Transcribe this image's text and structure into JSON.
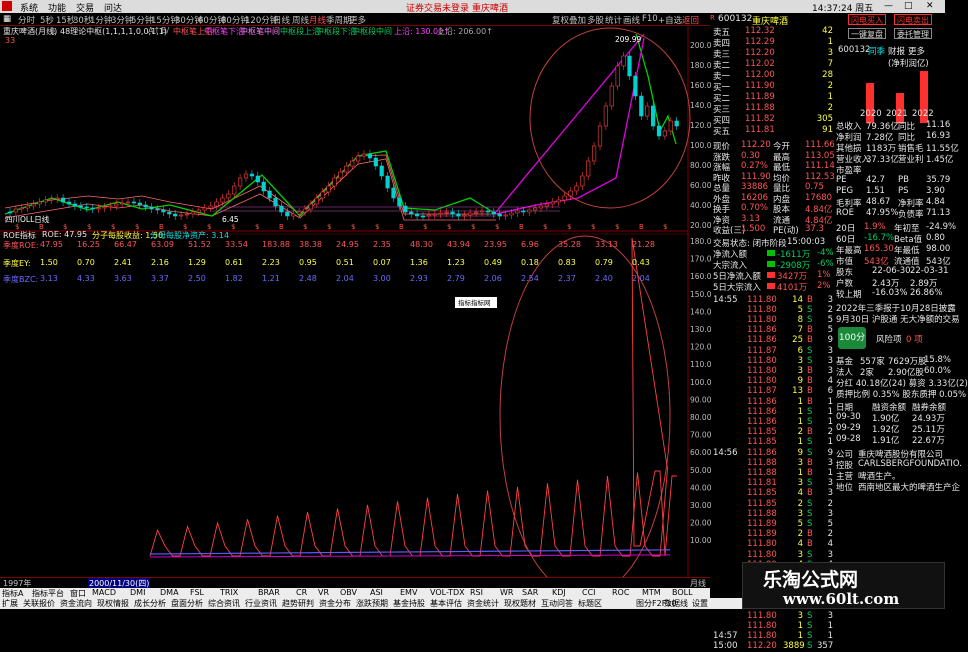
{
  "menubar": {
    "items": [
      "系统",
      "功能",
      "交易",
      "问达"
    ],
    "center_links": [
      "证券交易未登录",
      "重庆啤酒"
    ],
    "clock": "14:37:24 周五",
    "win_buttons": [
      "—",
      "□",
      "✕"
    ]
  },
  "periods": [
    "分时",
    "5秒",
    "15秒",
    "30秒",
    "1分钟",
    "3分钟",
    "5分钟",
    "15分钟",
    "30分钟",
    "60分钟",
    "80分钟",
    "120分钟",
    "日线",
    "周线",
    "月线",
    "季周期",
    "更多"
  ],
  "toolbar_right": [
    "复权",
    "叠加",
    "多股",
    "统计",
    "画线",
    "F10",
    "+自选",
    "返回"
  ],
  "chart": {
    "name": "重庆啤酒(月线)",
    "indicator": "48理论中枢(1,1,1,1,0,0,1,1)",
    "price_scale": "33",
    "labels": [
      "中枢笔上沿",
      "中枢笔下沿",
      "中枢笔中间",
      "中枢段上沿",
      "中枢段下沿",
      "中枢段中间"
    ],
    "upper_info": "上沿: 130.00↑",
    "upper_info2": "上沿: 206.00↑",
    "peak_label": "209.99",
    "low_label": "6.45",
    "left_label": "四川OLL日线",
    "y_axis": [
      "200.0",
      "180.0",
      "160.0",
      "140.0",
      "120.0",
      "100.0",
      "80.00",
      "60.00",
      "40.00",
      "20.00"
    ]
  },
  "lower": {
    "title": "ROE指标",
    "roe_label": "ROE: 47.95",
    "extra1": "分子每股收益: 1.50",
    "extra2": "分母每股净资产: 3.14",
    "row1_label": "季度ROE:",
    "row1": [
      "47.95",
      "16.25",
      "66.47",
      "63.09",
      "51.52",
      "33.54",
      "183.88",
      "38.38",
      "24.95",
      "2.35",
      "48.30",
      "43.94",
      "23.95",
      "6.96",
      "35.28",
      "33.13",
      "21.28"
    ],
    "row2_label": "季度EY:",
    "row2": [
      "1.50",
      "0.70",
      "2.41",
      "2.16",
      "1.29",
      "0.61",
      "2.23",
      "0.95",
      "0.51",
      "0.07",
      "1.36",
      "1.23",
      "0.49",
      "0.18",
      "0.83",
      "0.79",
      "0.43"
    ],
    "row3_label": "季度BZC:",
    "row3": [
      "3.13",
      "4.33",
      "3.63",
      "3.37",
      "2.50",
      "1.82",
      "1.21",
      "2.48",
      "2.04",
      "3.00",
      "2.93",
      "2.79",
      "2.06",
      "2.54",
      "2.37",
      "2.40",
      "2.04"
    ],
    "popup": "指标指标网",
    "y_axis": [
      "180.0",
      "170.0",
      "160.0",
      "150.0",
      "140.0",
      "130.0",
      "120.0",
      "110.0",
      "100.0",
      "90.00",
      "80.00",
      "70.00",
      "60.00",
      "50.00",
      "40.00",
      "30.00",
      "20.00",
      "10.00"
    ]
  },
  "bottom_axis": {
    "start": "1997年",
    "highlight": "2000/11/30(四)",
    "right": "月线"
  },
  "indicator_tabs": [
    "指标A",
    "指标平台",
    "窗口",
    "MACD",
    "DMI",
    "DMA",
    "FSL",
    "TRIX",
    "BRAR",
    "CR",
    "VR",
    "OBV",
    "ASI",
    "EMV",
    "VOL-TDX",
    "RSI",
    "WR",
    "SAR",
    "KDJ",
    "CCI",
    "ROC",
    "MTM",
    "BOLL",
    "PSY",
    "更多",
    "设置"
  ],
  "status_tabs": [
    "扩展",
    "关联报价",
    "资金流向",
    "现权情报",
    "成长分析",
    "盘面分析",
    "综合资讯",
    "行业资讯",
    "趋势研判",
    "资金分布",
    "涨跌预期",
    "基金持股",
    "基本评估",
    "资金统计",
    "现权题材",
    "互动问答",
    "标题区"
  ],
  "status_right": [
    "图分F2F10",
    "数据线",
    "设置"
  ],
  "quote": {
    "code": "600132",
    "name": "重庆啤酒",
    "orders": [
      {
        "label": "卖五",
        "price": "112.32",
        "vol": "42"
      },
      {
        "label": "卖四",
        "price": "112.29",
        "vol": "1"
      },
      {
        "label": "卖三",
        "price": "112.20",
        "vol": "3"
      },
      {
        "label": "卖二",
        "price": "112.02",
        "vol": "7"
      },
      {
        "label": "卖一",
        "price": "112.00",
        "vol": "28"
      },
      {
        "label": "买一",
        "price": "111.90",
        "vol": "2"
      },
      {
        "label": "买二",
        "price": "111.89",
        "vol": "1"
      },
      {
        "label": "买三",
        "price": "111.88",
        "vol": "2"
      },
      {
        "label": "买四",
        "price": "111.82",
        "vol": "305"
      },
      {
        "label": "买五",
        "price": "111.81",
        "vol": "91"
      }
    ],
    "stats": [
      [
        "现价",
        "112.20",
        "今开",
        "111.66"
      ],
      [
        "涨跌",
        "0.30",
        "最高",
        "113.05"
      ],
      [
        "涨幅",
        "0.27%",
        "最低",
        "111.14"
      ],
      [
        "昨收",
        "111.90",
        "均价",
        "112.53"
      ],
      [
        "总量",
        "33886",
        "量比",
        "0.75"
      ],
      [
        "外盘",
        "16206",
        "内盘",
        "17680"
      ],
      [
        "换手",
        "0.70%",
        "股本",
        "4.84亿"
      ],
      [
        "净资",
        "3.13",
        "流通",
        "4.84亿"
      ],
      [
        "收益(三)",
        "1.500",
        "PE(动)",
        "37.3"
      ]
    ],
    "trade_state": "交易状态: 闭市阶段",
    "trade_time": "15:00:03",
    "flows": [
      [
        "净流入额",
        "-1611万",
        "-4%"
      ],
      [
        "大宗流入",
        "-2908万",
        "-6%"
      ],
      [
        "5日净流入额",
        "3427万",
        "1%"
      ],
      [
        "5日大宗流入",
        "4101万",
        "2%"
      ]
    ],
    "ticks": [
      [
        "14:55",
        "111.80",
        "14",
        "B",
        "3"
      ],
      [
        "",
        "111.80",
        "5",
        "S",
        "2"
      ],
      [
        "",
        "111.80",
        "8",
        "S",
        "5"
      ],
      [
        "",
        "111.86",
        "7",
        "B",
        "5"
      ],
      [
        "",
        "111.86",
        "25",
        "B",
        "9"
      ],
      [
        "",
        "111.87",
        "6",
        "S",
        "3"
      ],
      [
        "",
        "111.80",
        "3",
        "S",
        "3"
      ],
      [
        "",
        "111.80",
        "3",
        "B",
        "3"
      ],
      [
        "",
        "111.80",
        "9",
        "B",
        "4"
      ],
      [
        "",
        "111.87",
        "13",
        "B",
        "6"
      ],
      [
        "",
        "111.86",
        "1",
        "B",
        "1"
      ],
      [
        "",
        "111.86",
        "1",
        "S",
        "1"
      ],
      [
        "",
        "111.86",
        "1",
        "S",
        "1"
      ],
      [
        "",
        "111.85",
        "2",
        "B",
        "2"
      ],
      [
        "",
        "111.85",
        "1",
        "S",
        "1"
      ],
      [
        "14:56",
        "111.86",
        "9",
        "S",
        "9"
      ],
      [
        "",
        "111.88",
        "3",
        "B",
        "3"
      ],
      [
        "",
        "111.88",
        "1",
        "B",
        "1"
      ],
      [
        "",
        "111.81",
        "3",
        "S",
        "3"
      ],
      [
        "",
        "111.85",
        "4",
        "B",
        "3"
      ],
      [
        "",
        "111.85",
        "2",
        "S",
        "2"
      ],
      [
        "",
        "111.88",
        "3",
        "S",
        "3"
      ],
      [
        "",
        "111.89",
        "5",
        "S",
        "5"
      ],
      [
        "",
        "111.89",
        "2",
        "B",
        "2"
      ],
      [
        "",
        "111.80",
        "4",
        "B",
        "4"
      ],
      [
        "",
        "111.80",
        "3",
        "S",
        "3"
      ],
      [
        "",
        "111.80",
        "4",
        "S",
        "4"
      ],
      [
        "",
        "111.80",
        "1",
        "S",
        "1"
      ],
      [
        "",
        "111.80",
        "1",
        "S",
        "1"
      ],
      [
        "",
        "111.80",
        "3",
        "S",
        "3"
      ],
      [
        "",
        "111.80",
        "1",
        "S",
        "1"
      ],
      [
        "",
        "111.80",
        "3",
        "S",
        "3"
      ],
      [
        "",
        "111.80",
        "1",
        "S",
        "1"
      ],
      [
        "14:57",
        "111.80",
        "1",
        "S",
        "1"
      ],
      [
        "15:00",
        "112.20",
        "3889",
        "S",
        "357"
      ]
    ]
  },
  "finance": {
    "code_tag": "A",
    "code": "600132",
    "name": "重庆啤酒",
    "btn_flash_buy": "闪电买入",
    "btn_flash_sell": "闪电卖出",
    "btn_buy": "一键复盘",
    "btn_sell": "委托管理",
    "tabs": [
      "同季",
      "财报",
      "更多"
    ],
    "tab_label": "(净利润亿)",
    "year_labels": [
      "2020",
      "2021",
      "2022"
    ],
    "rows": [
      [
        "总收入",
        "79.36亿",
        "同比",
        "11.16"
      ],
      [
        "净利润",
        "7.28亿",
        "同比",
        "16.93"
      ],
      [
        "其他损",
        "1183万",
        "销售毛",
        "11.55亿"
      ],
      [
        "营业收入",
        "37.33亿",
        "营业利",
        "1.45亿"
      ],
      [
        "市盈率",
        "",
        "",
        ""
      ],
      [
        "PE",
        "42.7",
        "PB",
        "35.79"
      ],
      [
        "PEG",
        "1.51",
        "PS",
        "3.90"
      ],
      [
        "毛利率",
        "48.67",
        "净利率",
        "4.84"
      ],
      [
        "ROE",
        "47.95%",
        "负债率",
        "71.13"
      ]
    ],
    "rows2": [
      [
        "20日",
        "1.9%",
        "年初至",
        "-24.9%"
      ],
      [
        "60日",
        "-16.7%",
        "Beta值",
        "0.80"
      ],
      [
        "年最高",
        "165.30",
        "年最低",
        "98.00"
      ],
      [
        "市值",
        "543亿",
        "流通值",
        "543亿"
      ]
    ],
    "report": [
      "股东",
      "22-06-30",
      "22-03-31"
    ],
    "report_rows": [
      [
        "户数",
        "2.43万",
        "2.89万"
      ],
      [
        "较上期",
        "-16.03%",
        "26.86%"
      ]
    ],
    "notice1": "2022年三季报于10月28日披露",
    "notice2": "9月30日 沪股通 无大净额的交易",
    "score": "100分",
    "risk": "风险项",
    "risk_count": "0 项",
    "holders": [
      [
        "基金",
        "557家",
        "7629万股",
        "15.8%"
      ],
      [
        "法人",
        "2家",
        "2.90亿股",
        "60.0%"
      ]
    ],
    "rights": "分红 40.18亿(24) 募资 3.33亿(2)",
    "pledge": "质押比例 0.35% 股东质押 0.05%",
    "margin_head": [
      "日期",
      "融资余额",
      "融券余额"
    ],
    "margin": [
      [
        "09-30",
        "1.90亿",
        "24.93万"
      ],
      [
        "09-29",
        "1.92亿",
        "25.11万"
      ],
      [
        "09-28",
        "1.91亿",
        "22.67万"
      ]
    ],
    "company_head": "公司",
    "company": "重庆啤酒股份有限公司",
    "holder_label": "控股",
    "holder": "CARLSBERGFOUNDATIO.",
    "business_label": "主营",
    "business": "啤酒生产。",
    "region_label": "地位",
    "region": "西南地区最大的啤酒生产企"
  },
  "watermark": {
    "line1": "乐淘公式网",
    "line2": "www.60lt.com"
  }
}
